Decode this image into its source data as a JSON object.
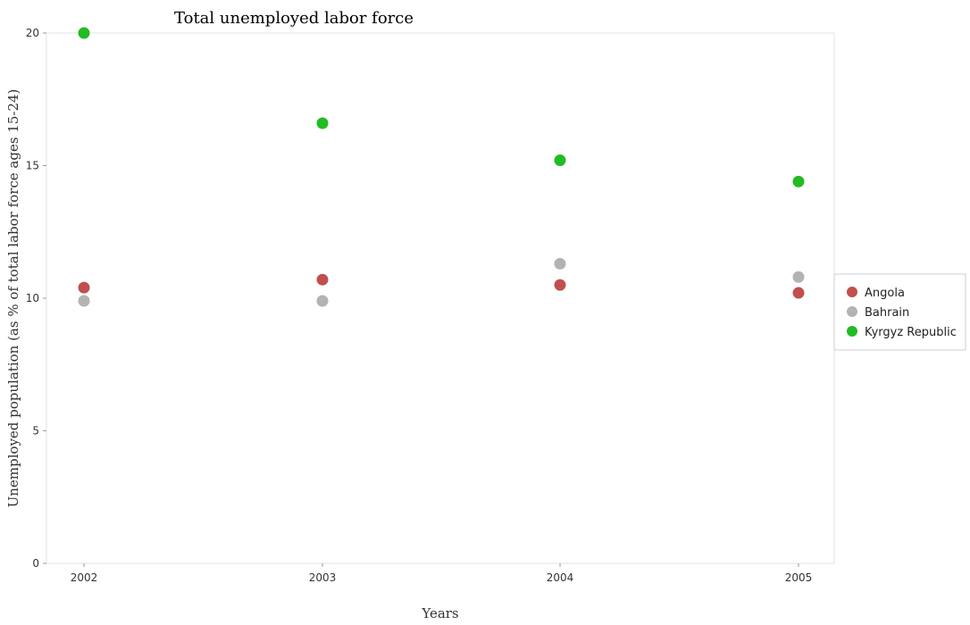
{
  "chart_data": {
    "type": "scatter",
    "title": "Total unemployed labor force",
    "xlabel": "Years",
    "ylabel": "Unemployed population (as % of total labor force ages 15-24)",
    "categories": [
      "2002",
      "2003",
      "2004",
      "2005"
    ],
    "ylim": [
      0,
      20
    ],
    "yticks": [
      "0",
      "5",
      "10",
      "15",
      "20"
    ],
    "grid": false,
    "legend_position": "right",
    "series": [
      {
        "name": "Angola",
        "color": "#c0504d",
        "values": [
          10.4,
          10.7,
          10.5,
          10.2
        ]
      },
      {
        "name": "Bahrain",
        "color": "#b3b3b3",
        "values": [
          9.9,
          9.9,
          11.3,
          10.8
        ]
      },
      {
        "name": "Kyrgyz Republic",
        "color": "#22bb22",
        "values": [
          20.0,
          16.6,
          15.2,
          14.4
        ]
      }
    ]
  }
}
